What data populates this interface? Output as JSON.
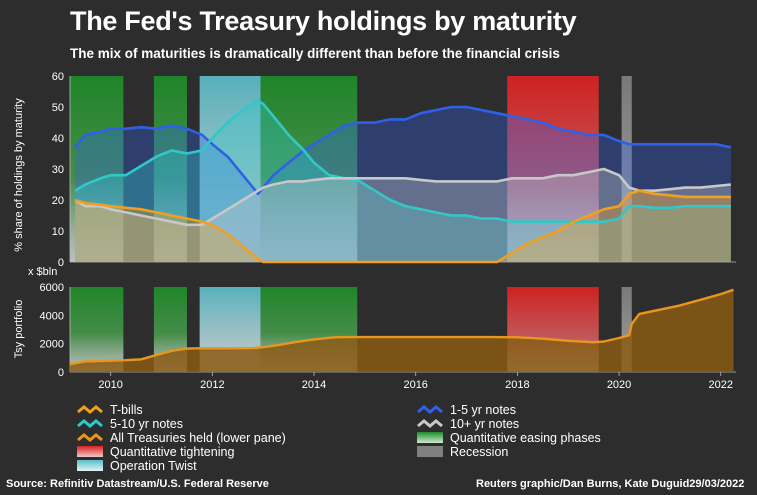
{
  "title": "The Fed's Treasury holdings by maturity",
  "subtitle": "The mix of maturities is dramatically different than before the financial crisis",
  "footer": {
    "source": "Source: Refinitiv Datastream/U.S. Federal Reserve",
    "credit": "Reuters graphic/Dan Burns, Kate Duguid29/03/2022"
  },
  "colors": {
    "background": "#2d2d2d",
    "tbills": "#f0a020",
    "notes1_5": "#3060e8",
    "notes5_10": "#30c8c8",
    "notes10": "#c8c8c8",
    "all": "#e8961e",
    "qe": "#1e8c28",
    "qt": "#dc2020",
    "recession": "#808080",
    "twist": "#78c8d2"
  },
  "chart_data": [
    {
      "type": "area",
      "title": "% share of holdings by maturity",
      "ylabel": "% share of holdings by maturity",
      "ylim": [
        0,
        60
      ],
      "yticks": [
        "0",
        "10",
        "20",
        "30",
        "40",
        "50",
        "60"
      ],
      "x": [
        2009.3,
        2009.5,
        2009.8,
        2010.0,
        2010.3,
        2010.6,
        2010.9,
        2011.2,
        2011.5,
        2011.8,
        2012.0,
        2012.3,
        2012.6,
        2012.9,
        2013.0,
        2013.2,
        2013.5,
        2013.8,
        2014.0,
        2014.3,
        2014.6,
        2014.9,
        2015.2,
        2015.5,
        2015.8,
        2016.1,
        2016.4,
        2016.7,
        2017.0,
        2017.3,
        2017.6,
        2017.9,
        2018.2,
        2018.5,
        2018.8,
        2019.1,
        2019.4,
        2019.7,
        2020.0,
        2020.2,
        2020.4,
        2020.7,
        2021.0,
        2021.3,
        2021.6,
        2021.9,
        2022.2
      ],
      "series": [
        {
          "name": "T-bills",
          "values": [
            20,
            19,
            18.5,
            18,
            17.5,
            17,
            16,
            15,
            14,
            13,
            12,
            9,
            5,
            1,
            0,
            0,
            0,
            0,
            0,
            0,
            0,
            0,
            0,
            0,
            0,
            0,
            0,
            0,
            0,
            0,
            0,
            3,
            6,
            8,
            10,
            13,
            15,
            17,
            18,
            22,
            23,
            22,
            21.5,
            21,
            21,
            21,
            21
          ]
        },
        {
          "name": "1-5 yr notes",
          "values": [
            37,
            41,
            42,
            43,
            43,
            43.5,
            43,
            44,
            43,
            41,
            38,
            34,
            28,
            22,
            24,
            28,
            32,
            36,
            38,
            41,
            44,
            45,
            45,
            46,
            46,
            48,
            49,
            50,
            50,
            49,
            48,
            47,
            46,
            45,
            43,
            42,
            41,
            41,
            39,
            38,
            38,
            38,
            38,
            38,
            38,
            38,
            37
          ]
        },
        {
          "name": "5-10 yr notes",
          "values": [
            23,
            25,
            27,
            28,
            28,
            31,
            34,
            36,
            35,
            36,
            40,
            45,
            49,
            52,
            51,
            47,
            41,
            36,
            32,
            28,
            27,
            26,
            23,
            20,
            18,
            17,
            16,
            15,
            15,
            14,
            14,
            13,
            13,
            13,
            13,
            13,
            13,
            13,
            14,
            18,
            18,
            17.5,
            17.5,
            18,
            18,
            18,
            18
          ]
        },
        {
          "name": "10+ yr notes",
          "values": [
            20,
            18,
            18,
            17,
            16,
            15,
            14,
            13,
            12,
            12,
            14,
            17,
            20,
            23,
            24,
            25,
            26,
            26,
            26.5,
            27,
            27,
            27,
            27,
            27,
            27,
            26.5,
            26,
            26,
            26,
            26,
            26,
            27,
            27,
            27,
            28,
            28,
            29,
            30,
            28,
            24,
            23,
            23,
            23.5,
            24,
            24,
            24.5,
            25
          ]
        }
      ]
    },
    {
      "type": "area",
      "title": "All Treasuries held (lower pane)",
      "ylabel": "Tsy portfolio",
      "unit_label": "x $bln",
      "ylim": [
        0,
        6000
      ],
      "yticks": [
        "0",
        "2000",
        "4000",
        "6000"
      ],
      "xticks": [
        "2010",
        "2012",
        "2014",
        "2016",
        "2018",
        "2020",
        "2022"
      ],
      "x": [
        2009.2,
        2009.5,
        2010.0,
        2010.3,
        2010.6,
        2010.9,
        2011.2,
        2011.5,
        2011.8,
        2012.3,
        2012.8,
        2013.0,
        2013.3,
        2013.6,
        2014.0,
        2014.4,
        2014.8,
        2015.5,
        2016.5,
        2017.5,
        2018.0,
        2018.5,
        2019.0,
        2019.5,
        2019.7,
        2020.0,
        2020.2,
        2020.25,
        2020.4,
        2020.8,
        2021.2,
        2021.6,
        2022.0,
        2022.25
      ],
      "series": [
        {
          "name": "All Treasuries held",
          "values": [
            550,
            750,
            800,
            830,
            900,
            1200,
            1500,
            1650,
            1680,
            1670,
            1690,
            1750,
            1900,
            2100,
            2300,
            2450,
            2460,
            2460,
            2460,
            2460,
            2450,
            2350,
            2200,
            2100,
            2150,
            2400,
            2600,
            3400,
            4100,
            4400,
            4700,
            5100,
            5500,
            5800
          ]
        }
      ]
    }
  ],
  "shaded_periods": [
    {
      "type": "Quantitative easing phases",
      "start": 2009.2,
      "end": 2010.25
    },
    {
      "type": "Quantitative easing phases",
      "start": 2010.85,
      "end": 2011.5
    },
    {
      "type": "Operation Twist",
      "start": 2011.75,
      "end": 2012.95
    },
    {
      "type": "Quantitative easing phases",
      "start": 2012.95,
      "end": 2014.85
    },
    {
      "type": "Quantitative tightening",
      "start": 2017.8,
      "end": 2019.6
    },
    {
      "type": "Recession",
      "start": 2020.05,
      "end": 2020.25
    }
  ],
  "legend": [
    {
      "label": "T-bills",
      "kind": "line",
      "color": "#f0a020"
    },
    {
      "label": "1-5 yr notes",
      "kind": "line",
      "color": "#3060e8"
    },
    {
      "label": "5-10 yr notes",
      "kind": "line",
      "color": "#30c8c8"
    },
    {
      "label": "10+ yr notes",
      "kind": "line",
      "color": "#c8c8c8"
    },
    {
      "label": "All Treasuries held (lower pane)",
      "kind": "line",
      "color": "#e8961e"
    },
    {
      "label": "Quantitative easing phases",
      "kind": "box",
      "color": "#1e8c28"
    },
    {
      "label": "Quantitative tightening",
      "kind": "box",
      "color": "#dc2020"
    },
    {
      "label": "Recession",
      "kind": "box",
      "color": "#808080"
    },
    {
      "label": "Operation Twist",
      "kind": "box",
      "color": "#78c8d2"
    }
  ]
}
